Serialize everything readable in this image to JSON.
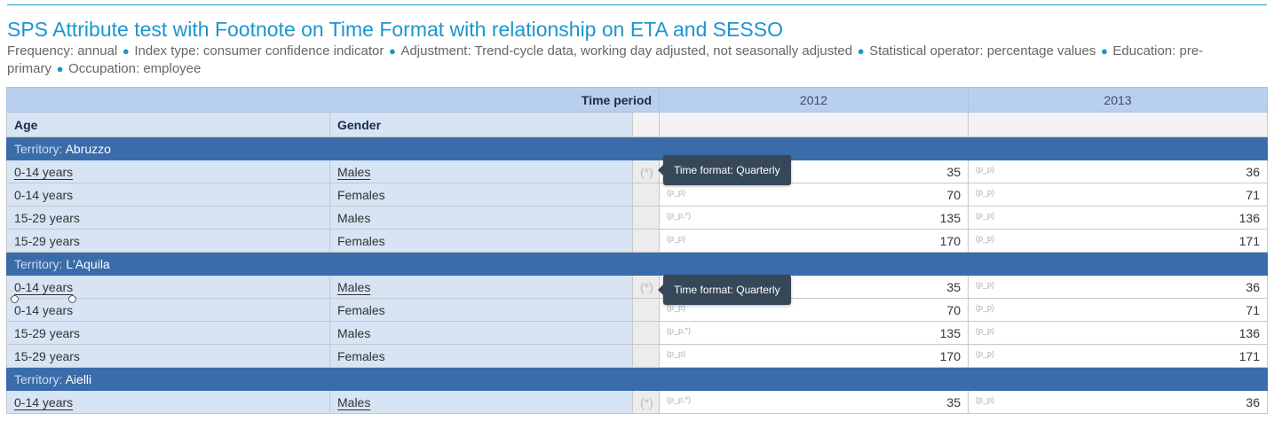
{
  "title": "SPS Attribute test with Footnote on Time Format with relationship on ETA and SESSO",
  "subtitle": [
    {
      "key": "Frequency",
      "value": "annual"
    },
    {
      "key": "Index type",
      "value": "consumer confidence indicator"
    },
    {
      "key": "Adjustment",
      "value": "Trend-cycle data, working day adjusted, not seasonally adjusted"
    },
    {
      "key": "Statistical operator",
      "value": "percentage values"
    },
    {
      "key": "Education",
      "value": "pre-primary"
    },
    {
      "key": "Occupation",
      "value": "employee"
    }
  ],
  "header": {
    "time_period_label": "Time period",
    "periods": [
      "2012",
      "2013"
    ],
    "age_label": "Age",
    "gender_label": "Gender"
  },
  "section_label": "Territory:",
  "sections": [
    {
      "name": "Abruzzo",
      "rows": [
        {
          "age": "0-14 years",
          "gender": "Males",
          "flag": "(*)",
          "v2012": "35",
          "f2012": "",
          "v2013": "36",
          "f2013": "(p_p)"
        },
        {
          "age": "0-14 years",
          "gender": "Females",
          "flag": "",
          "v2012": "70",
          "f2012": "(p_p)",
          "v2013": "71",
          "f2013": "(p_p)"
        },
        {
          "age": "15-29 years",
          "gender": "Males",
          "flag": "",
          "v2012": "135",
          "f2012": "(p_p,*)",
          "v2013": "136",
          "f2013": "(p_p)"
        },
        {
          "age": "15-29 years",
          "gender": "Females",
          "flag": "",
          "v2012": "170",
          "f2012": "(p_p)",
          "v2013": "171",
          "f2013": "(p_p)"
        }
      ]
    },
    {
      "name": "L'Aquila",
      "rows": [
        {
          "age": "0-14 years",
          "gender": "Males",
          "flag": "(*)",
          "v2012": "35",
          "f2012": "",
          "v2013": "36",
          "f2013": "(p_p)"
        },
        {
          "age": "0-14 years",
          "gender": "Females",
          "flag": "",
          "v2012": "70",
          "f2012": "(p_p)",
          "v2013": "71",
          "f2013": "(p_p)"
        },
        {
          "age": "15-29 years",
          "gender": "Males",
          "flag": "",
          "v2012": "135",
          "f2012": "(p_p,*)",
          "v2013": "136",
          "f2013": "(p_p)"
        },
        {
          "age": "15-29 years",
          "gender": "Females",
          "flag": "",
          "v2012": "170",
          "f2012": "(p_p)",
          "v2013": "171",
          "f2013": "(p_p)"
        }
      ]
    },
    {
      "name": "Aielli",
      "rows": [
        {
          "age": "0-14 years",
          "gender": "Males",
          "flag": "(*)",
          "v2012": "35",
          "f2012": "(p_p,*)",
          "v2013": "36",
          "f2013": "(p_p)"
        }
      ]
    }
  ],
  "tooltips": [
    "Time format: Quarterly",
    "Time format: Quarterly"
  ]
}
